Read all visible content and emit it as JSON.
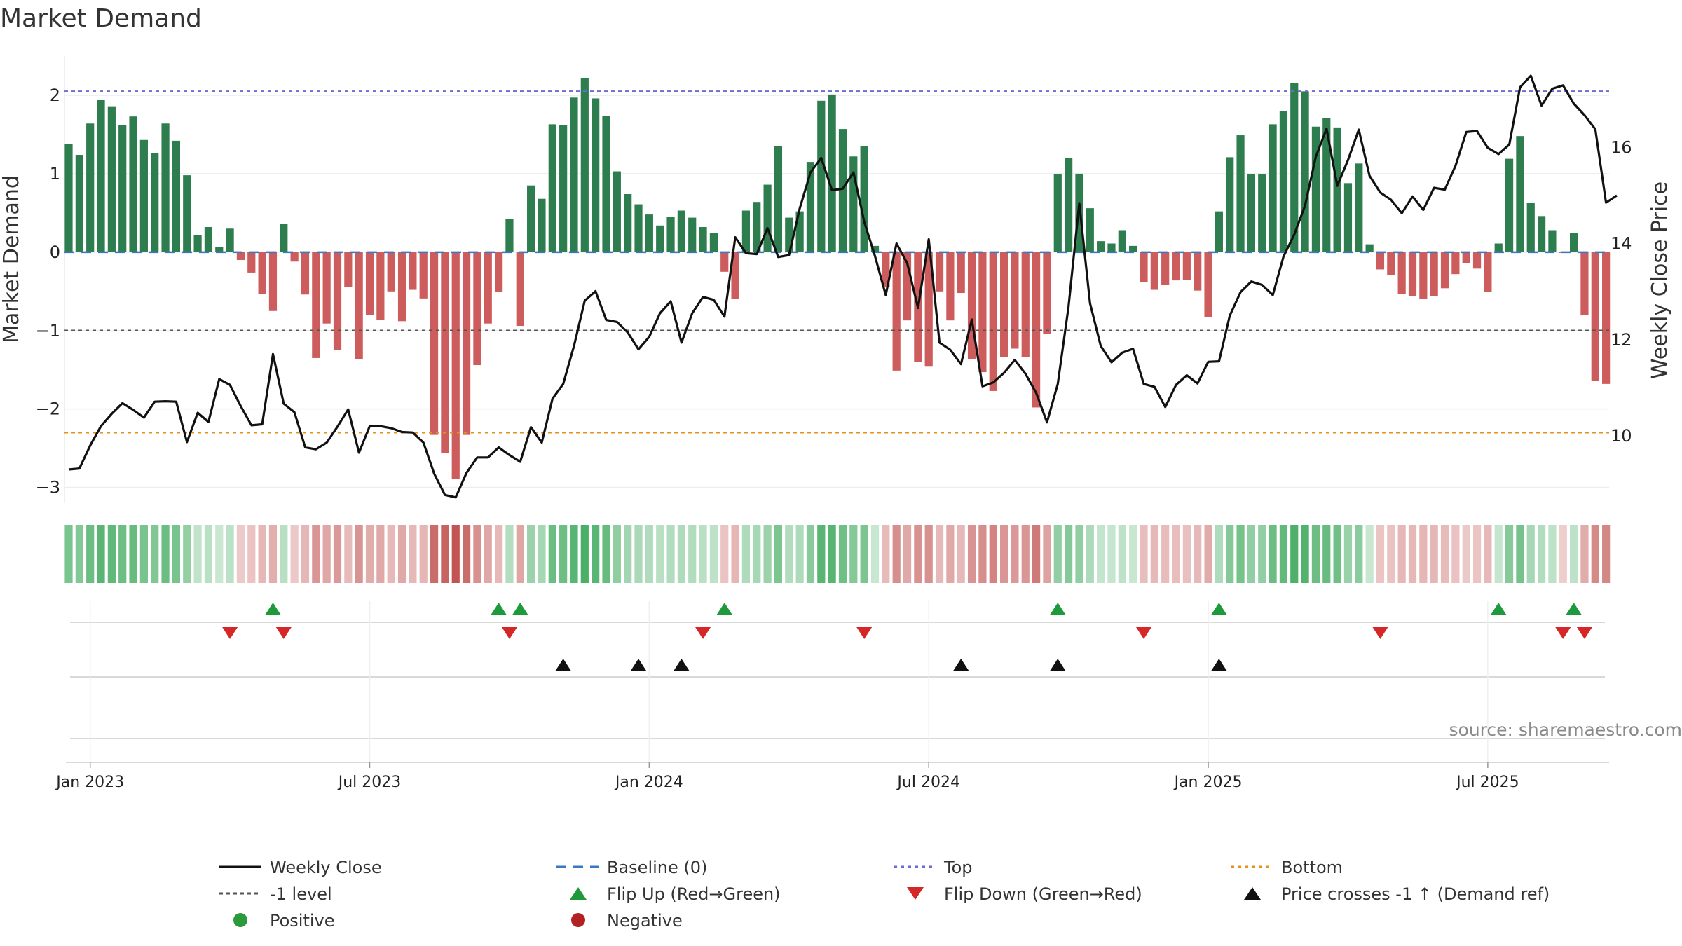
{
  "chart_data": {
    "type": "bar",
    "title": "Market Demand",
    "ylabel": "Market Demand",
    "ylabel_right": "Weekly Close Price",
    "ylim": [
      -3.2,
      2.5
    ],
    "ylim_right": [
      8.6,
      17.9
    ],
    "yticks": [
      2,
      1,
      0,
      -1,
      -2,
      -3
    ],
    "yticks_right": [
      16,
      14,
      12,
      10
    ],
    "xticks": [
      "Jan 2023",
      "Jul 2023",
      "Jan 2024",
      "Jul 2024",
      "Jan 2025",
      "Jul 2025"
    ],
    "xtick_weeks": [
      2,
      28,
      54,
      80,
      106,
      132
    ],
    "reference_lines": {
      "top": 2.05,
      "bottom": -2.3,
      "minus_one": -1,
      "baseline": 0
    },
    "demand": [
      1.38,
      1.24,
      1.64,
      1.94,
      1.86,
      1.62,
      1.73,
      1.43,
      1.26,
      1.64,
      1.42,
      0.98,
      0.22,
      0.32,
      0.07,
      0.3,
      -0.1,
      -0.26,
      -0.53,
      -0.75,
      0.36,
      -0.12,
      -0.54,
      -1.35,
      -0.91,
      -1.25,
      -0.44,
      -1.36,
      -0.8,
      -0.86,
      -0.5,
      -0.88,
      -0.48,
      -0.59,
      -2.33,
      -2.56,
      -2.89,
      -2.33,
      -1.44,
      -0.91,
      -0.51,
      0.42,
      -0.94,
      0.85,
      0.68,
      1.63,
      1.62,
      1.97,
      2.22,
      1.96,
      1.74,
      1.03,
      0.74,
      0.61,
      0.48,
      0.34,
      0.45,
      0.53,
      0.44,
      0.32,
      0.24,
      -0.25,
      -0.6,
      0.53,
      0.64,
      0.86,
      1.35,
      0.44,
      0.52,
      1.15,
      1.93,
      2.01,
      1.57,
      1.22,
      1.35,
      0.08,
      -0.44,
      -1.51,
      -0.87,
      -1.4,
      -1.46,
      -0.5,
      -0.87,
      -0.52,
      -1.36,
      -1.53,
      -1.77,
      -1.34,
      -1.23,
      -1.34,
      -1.98,
      -1.04,
      0.99,
      1.2,
      1.0,
      0.56,
      0.14,
      0.11,
      0.28,
      0.08,
      -0.38,
      -0.48,
      -0.42,
      -0.36,
      -0.35,
      -0.49,
      -0.83,
      0.52,
      1.21,
      1.49,
      0.99,
      0.99,
      1.63,
      1.8,
      2.16,
      2.05,
      1.6,
      1.71,
      1.59,
      0.88,
      1.13,
      0.1,
      -0.22,
      -0.29,
      -0.53,
      -0.56,
      -0.6,
      -0.56,
      -0.46,
      -0.28,
      -0.14,
      -0.21,
      -0.51,
      0.11,
      1.19,
      1.48,
      0.63,
      0.46,
      0.28,
      -0.01,
      0.24,
      -0.8,
      -1.64,
      -1.68
    ],
    "weekly_close": [
      9.3,
      9.32,
      9.8,
      10.2,
      10.46,
      10.68,
      10.54,
      10.38,
      10.71,
      10.72,
      10.71,
      9.87,
      10.48,
      10.29,
      11.18,
      11.06,
      10.62,
      10.22,
      10.24,
      11.7,
      10.67,
      10.49,
      9.76,
      9.72,
      9.86,
      10.19,
      10.55,
      9.65,
      10.2,
      10.2,
      10.16,
      10.08,
      10.07,
      9.86,
      9.21,
      8.77,
      8.72,
      9.23,
      9.55,
      9.55,
      9.76,
      9.6,
      9.46,
      10.18,
      9.86,
      10.77,
      11.08,
      11.87,
      12.81,
      13.01,
      12.41,
      12.37,
      12.15,
      11.8,
      12.06,
      12.55,
      12.8,
      11.94,
      12.55,
      12.89,
      12.83,
      12.48,
      14.13,
      13.8,
      13.78,
      14.32,
      13.72,
      13.76,
      14.73,
      15.48,
      15.78,
      15.11,
      15.14,
      15.48,
      14.45,
      13.74,
      12.93,
      14,
      13.59,
      12.66,
      14.09,
      11.94,
      11.79,
      11.49,
      12.42,
      11.03,
      11.11,
      11.31,
      11.58,
      11.29,
      10.89,
      10.28,
      11.08,
      12.68,
      14.84,
      12.76,
      11.87,
      11.53,
      11.73,
      11.81,
      11.08,
      11.02,
      10.6,
      11.06,
      11.26,
      11.09,
      11.54,
      11.55,
      12.5,
      12.99,
      13.21,
      13.14,
      12.93,
      13.73,
      14.19,
      14.79,
      15.8,
      16.39,
      15.2,
      15.74,
      16.37,
      15.41,
      15.06,
      14.91,
      14.63,
      14.98,
      14.7,
      15.16,
      15.12,
      15.62,
      16.32,
      16.34,
      15.99,
      15.86,
      16.06,
      17.25,
      17.49,
      16.87,
      17.22,
      17.29,
      16.91,
      16.67,
      16.38,
      14.85,
      15
    ]
  },
  "markers": {
    "flip_up_weeks": [
      19,
      40,
      42,
      61,
      92,
      107,
      133,
      140
    ],
    "flip_down_weeks": [
      15,
      20,
      41,
      59,
      74,
      100,
      122,
      139,
      141
    ],
    "price_cross_weeks": [
      46,
      53,
      57,
      83,
      92,
      107
    ]
  },
  "legend": {
    "weekly_close": "Weekly Close",
    "baseline": "Baseline (0)",
    "top": "Top",
    "bottom": "Bottom",
    "minus_one": "-1 level",
    "flip_up": "Flip Up (Red→Green)",
    "flip_down": "Flip Down (Green→Red)",
    "price_cross": "Price crosses -1 ↑ (Demand ref)",
    "positive": "Positive",
    "negative": "Negative"
  },
  "source": "source: sharemaestro.com",
  "colors": {
    "positive": "#2e7d4f",
    "negative": "#cd5c5c",
    "price": "#111111",
    "baseline": "#3a78c2",
    "top": "#6b6bd6",
    "bottom": "#e6901e",
    "minus_one": "#555555",
    "flip_up": "#1e9a3c",
    "flip_down": "#d62728",
    "cross": "#111111",
    "positive_dot": "#2a9a3a",
    "negative_dot": "#b22222"
  }
}
